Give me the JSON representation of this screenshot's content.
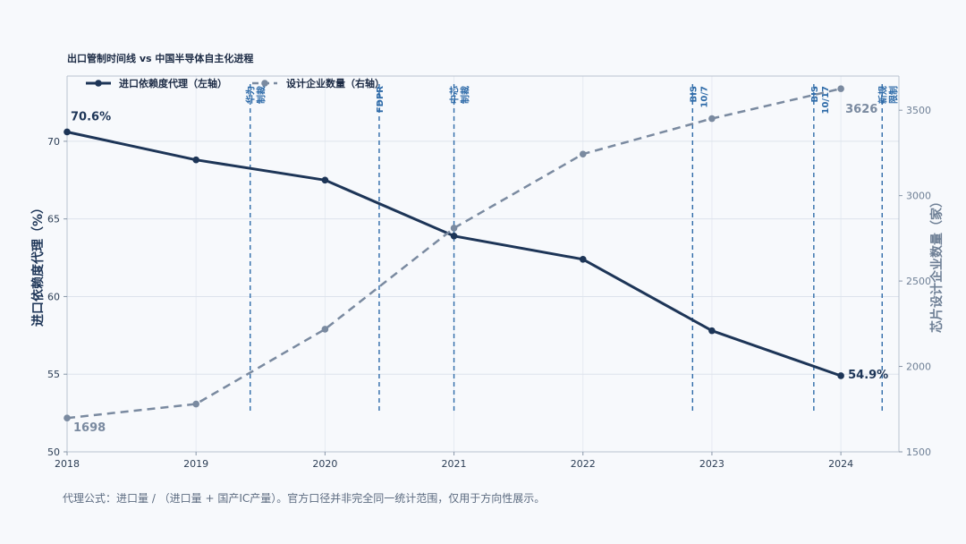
{
  "chart_data": {
    "type": "line",
    "title": "出口管制时间线 vs 中国半导体自主化进程",
    "x": [
      2018,
      2019,
      2020,
      2021,
      2022,
      2023,
      2024
    ],
    "xlim": [
      2018,
      2024.45
    ],
    "series": [
      {
        "name": "进口依赖度代理（左轴）",
        "axis": "left",
        "color": "#1d3557",
        "style": "solid",
        "values": [
          70.6,
          68.8,
          67.5,
          63.9,
          62.4,
          57.8,
          54.9
        ]
      },
      {
        "name": "设计企业数量（右轴）",
        "axis": "right",
        "color": "#7a8aa0",
        "style": "dashed",
        "values": [
          1698,
          1780,
          2218,
          2810,
          3243,
          3451,
          3626
        ]
      }
    ],
    "left_axis": {
      "label": "进口依赖度代理（%）",
      "ylim": [
        50,
        74.2
      ],
      "ticks": [
        50,
        55,
        60,
        65,
        70
      ]
    },
    "right_axis": {
      "label": "芯片设计企业数量（家）",
      "ylim": [
        1500,
        3700
      ],
      "ticks": [
        1500,
        2000,
        2500,
        3000,
        3500
      ]
    },
    "events": [
      {
        "x": 2019.42,
        "label": "华为\n制裁"
      },
      {
        "x": 2020.42,
        "label": "FDPR"
      },
      {
        "x": 2021.0,
        "label": "中芯\n制裁"
      },
      {
        "x": 2022.85,
        "label": "BIS\n10/7"
      },
      {
        "x": 2023.79,
        "label": "BIS\n10/17"
      },
      {
        "x": 2024.32,
        "label": "新规\n限制"
      }
    ],
    "data_labels": [
      {
        "series": 0,
        "index": 0,
        "text": "70.6%"
      },
      {
        "series": 0,
        "index": 6,
        "text": "54.9%"
      },
      {
        "series": 1,
        "index": 0,
        "text": "1698"
      },
      {
        "series": 1,
        "index": 6,
        "text": "3626"
      }
    ],
    "legend_position": "top-left",
    "grid": true
  },
  "footnote": "代理公式：进口量 / （进口量 + 国产IC产量）。官方口径并非完全同一统计范围，仅用于方向性展示。"
}
